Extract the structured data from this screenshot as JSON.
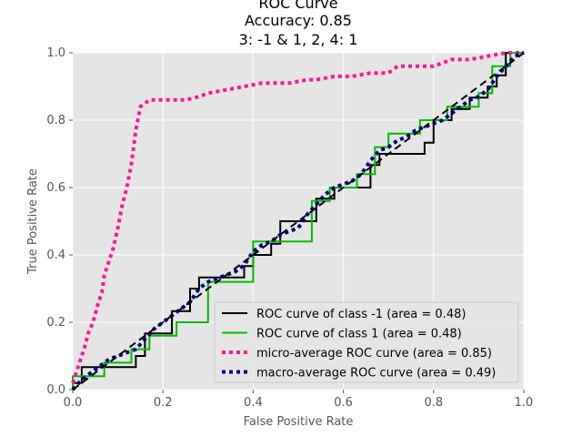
{
  "chart_data": {
    "type": "line",
    "title_lines": [
      "ROC Curve",
      "Accuracy: 0.85",
      "3: -1 & 1, 2, 4: 1"
    ],
    "xlabel": "False Positive Rate",
    "ylabel": "True Positive Rate",
    "xlim": [
      0,
      1
    ],
    "ylim": [
      0,
      1
    ],
    "xticks": [
      "0.0",
      "0.2",
      "0.4",
      "0.6",
      "0.8",
      "1.0"
    ],
    "yticks": [
      "0.0",
      "0.2",
      "0.4",
      "0.6",
      "0.8",
      "1.0"
    ],
    "grid": true,
    "legend_position": "lower-right",
    "diagonal": {
      "x": [
        0,
        1
      ],
      "y": [
        0,
        1
      ],
      "color": "#000000"
    },
    "series": [
      {
        "name": "ROC curve of class -1 (area = 0.48)",
        "color": "#000000",
        "style": "solid",
        "x": [
          0.0,
          0.0,
          0.02,
          0.02,
          0.06,
          0.06,
          0.14,
          0.14,
          0.16,
          0.16,
          0.22,
          0.22,
          0.26,
          0.26,
          0.28,
          0.28,
          0.38,
          0.38,
          0.4,
          0.4,
          0.44,
          0.44,
          0.46,
          0.46,
          0.54,
          0.54,
          0.58,
          0.58,
          0.66,
          0.66,
          0.68,
          0.68,
          0.78,
          0.78,
          0.8,
          0.8,
          0.84,
          0.84,
          0.88,
          0.88,
          0.92,
          0.92,
          0.94,
          0.94,
          0.96,
          0.96,
          1.0
        ],
        "y": [
          0.0,
          0.02,
          0.02,
          0.067,
          0.067,
          0.067,
          0.067,
          0.1,
          0.1,
          0.167,
          0.167,
          0.233,
          0.233,
          0.3,
          0.3,
          0.333,
          0.333,
          0.367,
          0.367,
          0.4,
          0.4,
          0.433,
          0.433,
          0.5,
          0.5,
          0.567,
          0.567,
          0.6,
          0.6,
          0.667,
          0.667,
          0.7,
          0.7,
          0.733,
          0.733,
          0.8,
          0.8,
          0.833,
          0.833,
          0.867,
          0.867,
          0.9,
          0.9,
          0.933,
          0.933,
          1.0,
          1.0
        ]
      },
      {
        "name": "ROC curve of class 1 (area = 0.48)",
        "color": "#00bb00",
        "style": "solid",
        "x": [
          0.0,
          0.0,
          0.03,
          0.03,
          0.07,
          0.07,
          0.13,
          0.13,
          0.17,
          0.17,
          0.23,
          0.23,
          0.27,
          0.27,
          0.3,
          0.3,
          0.4,
          0.4,
          0.47,
          0.47,
          0.53,
          0.53,
          0.57,
          0.57,
          0.63,
          0.63,
          0.67,
          0.67,
          0.7,
          0.7,
          0.77,
          0.77,
          0.83,
          0.83,
          0.87,
          0.87,
          0.9,
          0.9,
          0.93,
          0.93,
          0.97,
          0.97,
          1.0
        ],
        "y": [
          0.0,
          0.04,
          0.04,
          0.04,
          0.04,
          0.08,
          0.08,
          0.12,
          0.12,
          0.16,
          0.16,
          0.2,
          0.2,
          0.2,
          0.2,
          0.32,
          0.32,
          0.44,
          0.44,
          0.44,
          0.44,
          0.56,
          0.56,
          0.6,
          0.6,
          0.64,
          0.64,
          0.72,
          0.72,
          0.76,
          0.76,
          0.8,
          0.8,
          0.84,
          0.84,
          0.84,
          0.84,
          0.88,
          0.88,
          0.96,
          0.96,
          1.0,
          1.0
        ]
      },
      {
        "name": "micro-average ROC curve (area = 0.85)",
        "color": "#ff1493",
        "style": "dotted",
        "x": [
          0.0,
          0.005,
          0.015,
          0.025,
          0.035,
          0.045,
          0.055,
          0.065,
          0.07,
          0.08,
          0.09,
          0.1,
          0.11,
          0.12,
          0.13,
          0.14,
          0.15,
          0.17,
          0.2,
          0.25,
          0.28,
          0.3,
          0.34,
          0.38,
          0.42,
          0.48,
          0.52,
          0.54,
          0.58,
          0.62,
          0.66,
          0.7,
          0.72,
          0.76,
          0.8,
          0.84,
          0.88,
          0.92,
          0.96,
          1.0
        ],
        "y": [
          0.02,
          0.04,
          0.08,
          0.12,
          0.17,
          0.2,
          0.25,
          0.29,
          0.34,
          0.38,
          0.42,
          0.48,
          0.55,
          0.6,
          0.67,
          0.77,
          0.84,
          0.86,
          0.86,
          0.86,
          0.87,
          0.88,
          0.89,
          0.9,
          0.91,
          0.91,
          0.92,
          0.92,
          0.93,
          0.93,
          0.94,
          0.94,
          0.96,
          0.96,
          0.96,
          0.98,
          0.98,
          0.99,
          1.0,
          1.0
        ]
      },
      {
        "name": "macro-average ROC curve (area = 0.49)",
        "color": "#000080",
        "style": "dotted",
        "x": [
          0.0,
          0.02,
          0.04,
          0.06,
          0.08,
          0.1,
          0.12,
          0.14,
          0.16,
          0.18,
          0.2,
          0.22,
          0.24,
          0.26,
          0.28,
          0.3,
          0.32,
          0.34,
          0.36,
          0.38,
          0.4,
          0.42,
          0.44,
          0.46,
          0.48,
          0.5,
          0.52,
          0.54,
          0.56,
          0.58,
          0.6,
          0.62,
          0.64,
          0.66,
          0.68,
          0.7,
          0.72,
          0.74,
          0.76,
          0.78,
          0.8,
          0.82,
          0.84,
          0.86,
          0.88,
          0.9,
          0.92,
          0.94,
          0.96,
          0.98,
          1.0
        ],
        "y": [
          0.0,
          0.03,
          0.05,
          0.07,
          0.09,
          0.1,
          0.11,
          0.12,
          0.15,
          0.18,
          0.2,
          0.22,
          0.24,
          0.26,
          0.3,
          0.32,
          0.33,
          0.34,
          0.35,
          0.37,
          0.41,
          0.43,
          0.44,
          0.46,
          0.47,
          0.48,
          0.52,
          0.55,
          0.58,
          0.6,
          0.61,
          0.62,
          0.64,
          0.68,
          0.71,
          0.72,
          0.74,
          0.75,
          0.77,
          0.78,
          0.79,
          0.8,
          0.82,
          0.84,
          0.86,
          0.87,
          0.89,
          0.93,
          0.96,
          0.99,
          1.0
        ]
      }
    ]
  }
}
